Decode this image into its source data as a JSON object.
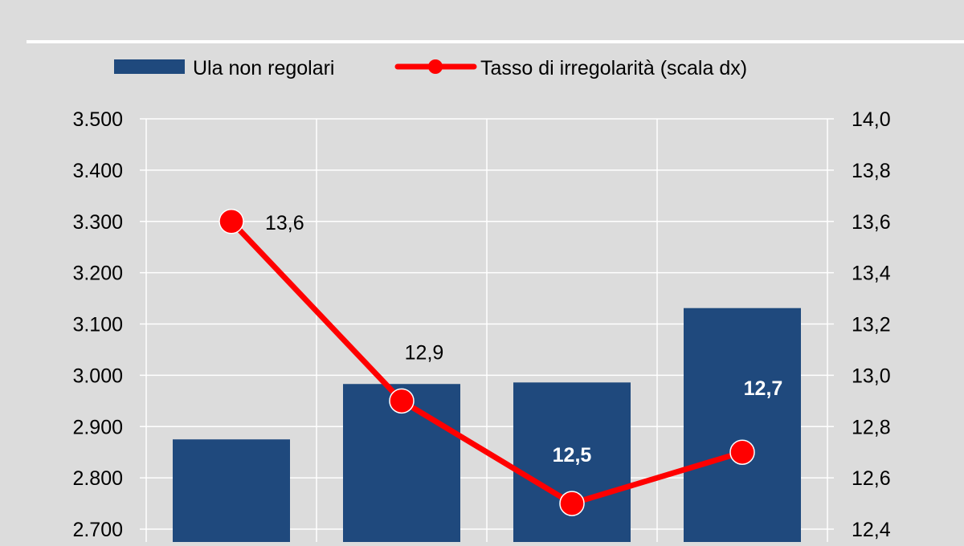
{
  "chart_data": {
    "type": "bar",
    "categories": [
      "",
      "",
      "",
      ""
    ],
    "series": [
      {
        "name": "Ula non regolari",
        "type": "bar",
        "axis": "left",
        "values": [
          2875,
          2983,
          2986,
          3131
        ],
        "color": "#1f497d"
      },
      {
        "name": "Tasso di irregolarità (scala dx)",
        "type": "line",
        "axis": "right",
        "values": [
          13.6,
          12.9,
          12.5,
          12.7
        ],
        "labels": [
          "13,6",
          "12,9",
          "12,5",
          "12,7"
        ],
        "color": "#ff0000"
      }
    ],
    "y_left": {
      "min": 2700,
      "max": 3500,
      "ticks": [
        3500,
        3400,
        3300,
        3200,
        3100,
        3000,
        2900,
        2800,
        2700
      ],
      "tick_labels": [
        "3.500",
        "3.400",
        "3.300",
        "3.200",
        "3.100",
        "3.000",
        "2.900",
        "2.800",
        "2.700"
      ]
    },
    "y_right": {
      "min": 12.4,
      "max": 14.0,
      "ticks": [
        14.0,
        13.8,
        13.6,
        13.4,
        13.2,
        13.0,
        12.8,
        12.6,
        12.4
      ],
      "tick_labels": [
        "14,0",
        "13,8",
        "13,6",
        "13,4",
        "13,2",
        "13,0",
        "12,8",
        "12,6",
        "12,4"
      ]
    },
    "grid": true,
    "legend": "top"
  }
}
